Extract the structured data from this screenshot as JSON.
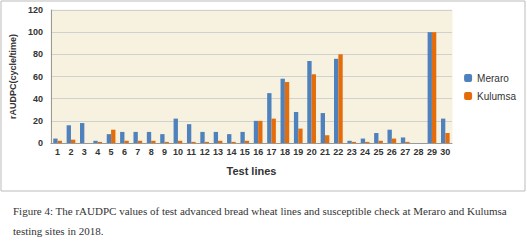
{
  "chart_data": {
    "type": "bar",
    "title": "Figure 4: The rAUDPC values of test advanced bread wheat lines and susceptible check at Meraro and Kulumsa testing sites in 2018.",
    "x_label": "Test lines",
    "y_label": "rAUDPC(cycle/time)",
    "categories": [
      "1",
      "2",
      "3",
      "4",
      "5",
      "6",
      "7",
      "8",
      "9",
      "10",
      "11",
      "12",
      "13",
      "14",
      "15",
      "16",
      "17",
      "18",
      "19",
      "20",
      "21",
      "22",
      "23",
      "24",
      "25",
      "26",
      "27",
      "28",
      "29",
      "30"
    ],
    "series": [
      {
        "name": "Meraro",
        "color": "#4f81bd",
        "values": [
          4,
          16,
          18,
          2,
          8,
          10,
          10,
          10,
          8,
          22,
          17,
          10,
          10,
          8,
          10,
          20,
          45,
          58,
          28,
          74,
          27,
          76,
          2,
          4,
          9,
          12,
          5,
          0,
          100,
          22
        ]
      },
      {
        "name": "Kulumsa",
        "color": "#e46c0a",
        "values": [
          2,
          3,
          0,
          1,
          12,
          2,
          2,
          2,
          1,
          2,
          1,
          1,
          2,
          1,
          2,
          20,
          22,
          55,
          13,
          62,
          7,
          80,
          1,
          1,
          2,
          4,
          1,
          0,
          100,
          9
        ]
      }
    ],
    "ylim": [
      0,
      120
    ],
    "yticks": [
      0,
      20,
      40,
      60,
      80,
      100,
      120
    ],
    "grid": true,
    "legend": "right"
  }
}
